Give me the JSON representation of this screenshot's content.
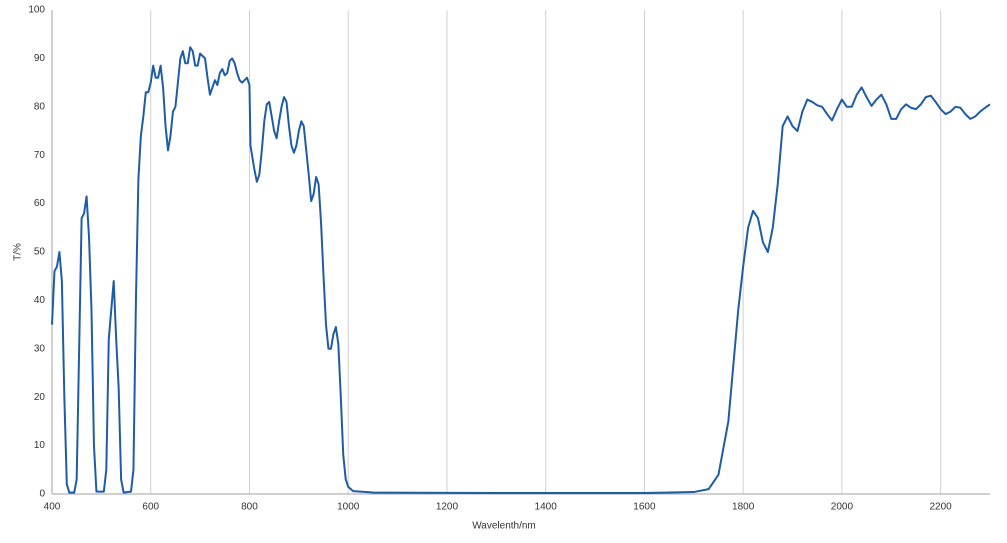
{
  "chart_data": {
    "type": "line",
    "x_label": "Wavelenth/nm",
    "y_label": "T/%",
    "xlim": [
      400,
      2300
    ],
    "xticks": [
      400,
      600,
      800,
      1000,
      1200,
      1400,
      1600,
      1800,
      2000,
      2200
    ],
    "ylim": [
      0,
      100
    ],
    "yticks": [
      0,
      10,
      20,
      30,
      40,
      50,
      60,
      70,
      80,
      90,
      100
    ],
    "grid": "x",
    "series": [
      {
        "color": "#1f5ca6",
        "x": [
          400,
          405,
          410,
          415,
          420,
          425,
          430,
          435,
          445,
          450,
          455,
          460,
          465,
          470,
          475,
          480,
          485,
          490,
          505,
          510,
          515,
          520,
          525,
          530,
          535,
          540,
          545,
          560,
          565,
          570,
          575,
          580,
          585,
          590,
          595,
          600,
          605,
          610,
          615,
          620,
          625,
          630,
          635,
          640,
          645,
          650,
          655,
          660,
          665,
          670,
          675,
          680,
          685,
          690,
          695,
          700,
          705,
          710,
          715,
          720,
          725,
          730,
          735,
          740,
          745,
          750,
          755,
          760,
          765,
          770,
          775,
          780,
          785,
          790,
          795,
          800,
          802,
          810,
          815,
          820,
          825,
          830,
          835,
          840,
          845,
          850,
          855,
          860,
          865,
          870,
          875,
          880,
          885,
          890,
          895,
          900,
          905,
          910,
          915,
          920,
          925,
          930,
          935,
          940,
          945,
          950,
          955,
          960,
          965,
          970,
          975,
          980,
          985,
          990,
          995,
          1000,
          1010,
          1050,
          1300,
          1600,
          1700,
          1730,
          1750,
          1770,
          1790,
          1800,
          1810,
          1820,
          1830,
          1840,
          1850,
          1860,
          1870,
          1880,
          1890,
          1900,
          1910,
          1920,
          1930,
          1940,
          1950,
          1960,
          1970,
          1980,
          1990,
          2000,
          2010,
          2020,
          2030,
          2040,
          2050,
          2060,
          2070,
          2080,
          2090,
          2100,
          2110,
          2120,
          2130,
          2140,
          2150,
          2160,
          2170,
          2180,
          2190,
          2200,
          2210,
          2220,
          2230,
          2240,
          2250,
          2260,
          2270,
          2280,
          2290,
          2300
        ],
        "values": [
          35,
          46,
          47,
          50,
          44,
          20,
          2,
          0.3,
          0.3,
          3,
          30,
          57,
          58,
          61.5,
          53,
          38,
          10,
          0.5,
          0.5,
          5,
          32,
          38,
          44,
          32,
          22,
          3,
          0.3,
          0.5,
          5,
          40,
          65,
          74,
          78,
          83,
          83,
          85,
          88.5,
          86,
          86,
          88.5,
          84,
          76,
          71,
          74,
          79,
          80,
          85,
          90,
          91.5,
          89,
          89,
          92.3,
          91.5,
          88.5,
          88.5,
          91,
          90.5,
          90,
          86,
          82.5,
          84,
          85.5,
          84.5,
          87,
          87.8,
          86.5,
          87,
          89.5,
          90,
          89,
          87,
          85.5,
          85,
          85.5,
          86,
          84.5,
          72,
          67,
          64.5,
          66,
          71,
          77,
          80.5,
          81,
          78,
          75,
          73.5,
          77,
          80,
          82,
          81,
          76,
          72,
          70.5,
          72,
          75,
          77,
          76,
          71,
          66,
          60.5,
          62,
          65.5,
          64,
          56,
          45,
          35,
          30,
          30,
          33,
          34.5,
          31,
          20,
          8,
          3,
          1.5,
          0.6,
          0.3,
          0.2,
          0.2,
          0.4,
          1,
          4,
          15,
          38,
          47,
          55,
          58.5,
          57,
          52,
          50,
          55,
          64,
          76,
          78,
          76,
          75,
          79,
          81.5,
          81,
          80.3,
          80,
          78.5,
          77.2,
          79.5,
          81.5,
          80,
          80,
          82.5,
          84,
          82,
          80.2,
          81.5,
          82.5,
          80.5,
          77.5,
          77.5,
          79.5,
          80.5,
          79.8,
          79.5,
          80.5,
          82,
          82.3,
          81,
          79.5,
          78.5,
          79,
          80,
          79.8,
          78.5,
          77.5,
          78,
          79,
          79.8,
          80.5
        ]
      }
    ]
  }
}
